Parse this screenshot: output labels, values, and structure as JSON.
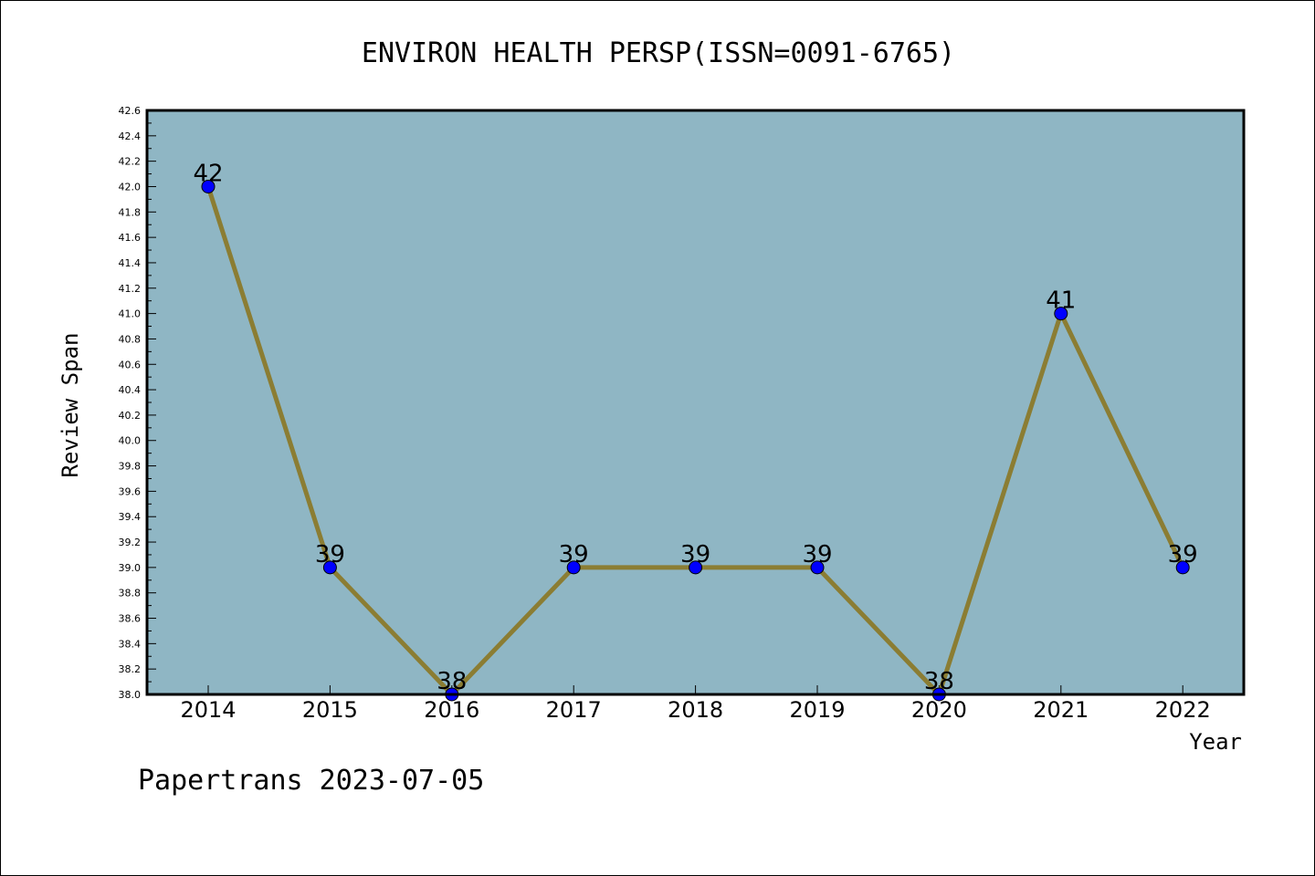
{
  "chart_data": {
    "type": "line",
    "title": "ENVIRON HEALTH PERSP(ISSN=0091-6765)",
    "xlabel": "Year",
    "ylabel": "Review Span",
    "categories": [
      "2014",
      "2015",
      "2016",
      "2017",
      "2018",
      "2019",
      "2020",
      "2021",
      "2022"
    ],
    "series": [
      {
        "values": [
          42,
          39,
          38,
          39,
          39,
          39,
          38,
          41,
          39
        ]
      }
    ],
    "data_labels": [
      "42",
      "39",
      "38",
      "39",
      "39",
      "39",
      "38",
      "41",
      "39"
    ],
    "ylim": [
      38.0,
      42.6
    ],
    "yticks": [
      "38.0",
      "38.2",
      "38.4",
      "38.6",
      "38.8",
      "39.0",
      "39.2",
      "39.4",
      "39.6",
      "39.8",
      "40.0",
      "40.2",
      "40.4",
      "40.6",
      "40.8",
      "41.0",
      "41.2",
      "41.4",
      "41.6",
      "41.8",
      "42.0",
      "42.2",
      "42.4",
      "42.6"
    ],
    "grid": false,
    "colors": {
      "plot_background": "#8fb6c4",
      "line": "#8b7d33",
      "marker": "#0000ff"
    }
  },
  "footer": "Papertrans 2023-07-05"
}
